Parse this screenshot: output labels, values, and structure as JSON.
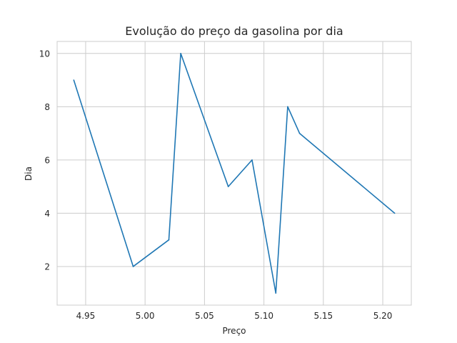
{
  "chart_data": {
    "type": "line",
    "title": "Evolução do preço da gasolina por dia",
    "xlabel": "Preço",
    "ylabel": "Dia",
    "xlim": [
      4.926,
      5.224
    ],
    "ylim": [
      0.55,
      10.45
    ],
    "xticks": [
      4.95,
      5.0,
      5.05,
      5.1,
      5.15,
      5.2
    ],
    "xtick_labels": [
      "4.95",
      "5.00",
      "5.05",
      "5.10",
      "5.15",
      "5.20"
    ],
    "yticks": [
      2,
      4,
      6,
      8,
      10
    ],
    "ytick_labels": [
      "2",
      "4",
      "6",
      "8",
      "10"
    ],
    "grid": true,
    "series": [
      {
        "color": "#1f77b4",
        "x": [
          4.94,
          4.99,
          5.02,
          5.03,
          5.07,
          5.09,
          5.11,
          5.12,
          5.13,
          5.21
        ],
        "y": [
          9,
          2,
          3,
          10,
          5,
          6,
          1,
          8,
          7,
          4
        ]
      }
    ]
  }
}
